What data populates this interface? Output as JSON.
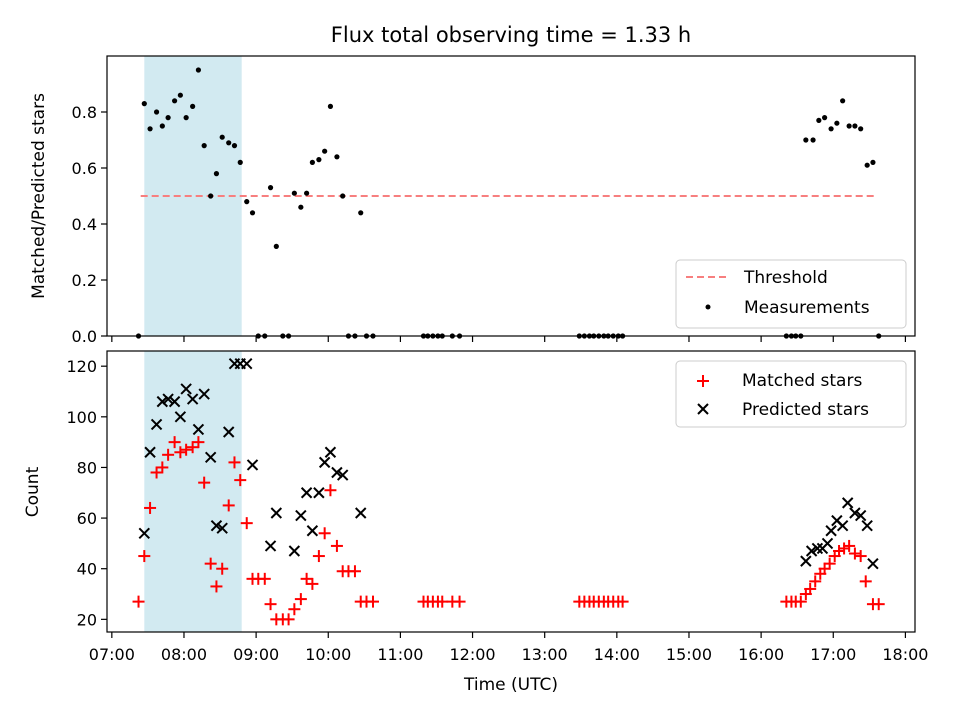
{
  "title": "Flux total observing time = 1.33 h",
  "colors": {
    "threshold": "#f77f7f",
    "band": "#add8e6",
    "matched": "#ff0000",
    "predicted": "#000000"
  },
  "chart_data": [
    {
      "type": "scatter",
      "ylabel": "Matched/Predicted stars",
      "xlim": [
        6.933,
        18.133
      ],
      "ylim": [
        0,
        1.0
      ],
      "yticks": [
        0,
        0.2,
        0.4,
        0.6,
        0.8
      ],
      "ytick_labels": [
        "0.0",
        "0.2",
        "0.4",
        "0.6",
        "0.8"
      ],
      "shaded_band": [
        7.45,
        8.8
      ],
      "threshold": {
        "label": "Threshold",
        "value": 0.5,
        "x_range": [
          7.4,
          17.6
        ]
      },
      "legend_labels": [
        "Threshold",
        "Measurements"
      ],
      "legend_position": "lower-right",
      "points": [
        [
          7.37,
          0
        ],
        [
          7.45,
          0.83
        ],
        [
          7.53,
          0.74
        ],
        [
          7.62,
          0.8
        ],
        [
          7.7,
          0.75
        ],
        [
          7.78,
          0.78
        ],
        [
          7.87,
          0.84
        ],
        [
          7.95,
          0.86
        ],
        [
          8.03,
          0.78
        ],
        [
          8.12,
          0.82
        ],
        [
          8.2,
          0.95
        ],
        [
          8.28,
          0.68
        ],
        [
          8.37,
          0.5
        ],
        [
          8.45,
          0.58
        ],
        [
          8.53,
          0.71
        ],
        [
          8.62,
          0.69
        ],
        [
          8.7,
          0.68
        ],
        [
          8.78,
          0.62
        ],
        [
          8.87,
          0.48
        ],
        [
          8.95,
          0.44
        ],
        [
          9.03,
          0
        ],
        [
          9.12,
          0
        ],
        [
          9.2,
          0.53
        ],
        [
          9.28,
          0.32
        ],
        [
          9.37,
          0
        ],
        [
          9.45,
          0
        ],
        [
          9.53,
          0.51
        ],
        [
          9.62,
          0.46
        ],
        [
          9.7,
          0.51
        ],
        [
          9.78,
          0.62
        ],
        [
          9.87,
          0.63
        ],
        [
          9.95,
          0.66
        ],
        [
          10.03,
          0.82
        ],
        [
          10.12,
          0.64
        ],
        [
          10.2,
          0.5
        ],
        [
          10.28,
          0
        ],
        [
          10.37,
          0
        ],
        [
          10.45,
          0.44
        ],
        [
          10.53,
          0
        ],
        [
          10.62,
          0
        ],
        [
          11.32,
          0
        ],
        [
          11.38,
          0
        ],
        [
          11.45,
          0
        ],
        [
          11.52,
          0
        ],
        [
          11.58,
          0
        ],
        [
          11.72,
          0
        ],
        [
          11.82,
          0
        ],
        [
          13.48,
          0
        ],
        [
          13.55,
          0
        ],
        [
          13.62,
          0
        ],
        [
          13.68,
          0
        ],
        [
          13.75,
          0
        ],
        [
          13.82,
          0
        ],
        [
          13.88,
          0
        ],
        [
          13.95,
          0
        ],
        [
          14.02,
          0
        ],
        [
          14.08,
          0
        ],
        [
          16.35,
          0
        ],
        [
          16.42,
          0
        ],
        [
          16.48,
          0
        ],
        [
          16.55,
          0
        ],
        [
          16.62,
          0.7
        ],
        [
          16.72,
          0.7
        ],
        [
          16.8,
          0.77
        ],
        [
          16.88,
          0.78
        ],
        [
          16.97,
          0.74
        ],
        [
          17.05,
          0.76
        ],
        [
          17.13,
          0.84
        ],
        [
          17.22,
          0.75
        ],
        [
          17.3,
          0.75
        ],
        [
          17.38,
          0.74
        ],
        [
          17.47,
          0.61
        ],
        [
          17.55,
          0.62
        ],
        [
          17.63,
          0
        ]
      ]
    },
    {
      "type": "scatter",
      "ylabel": "Count",
      "xlabel": "Time (UTC)",
      "xlim": [
        6.933,
        18.133
      ],
      "ylim": [
        15,
        126
      ],
      "yticks": [
        20,
        40,
        60,
        80,
        100,
        120
      ],
      "ytick_labels": [
        "20",
        "40",
        "60",
        "80",
        "100",
        "120"
      ],
      "xticks": [
        7,
        8,
        9,
        10,
        11,
        12,
        13,
        14,
        15,
        16,
        17,
        18
      ],
      "xtick_labels": [
        "07:00",
        "08:00",
        "09:00",
        "10:00",
        "11:00",
        "12:00",
        "13:00",
        "14:00",
        "15:00",
        "16:00",
        "17:00",
        "18:00"
      ],
      "shaded_band": [
        7.45,
        8.8
      ],
      "legend_labels": [
        "Matched stars",
        "Predicted stars"
      ],
      "legend_position": "top-right",
      "series": [
        {
          "name": "Matched stars",
          "marker": "+",
          "points": [
            [
              7.37,
              27
            ],
            [
              7.45,
              45
            ],
            [
              7.53,
              64
            ],
            [
              7.62,
              78
            ],
            [
              7.7,
              80
            ],
            [
              7.78,
              85
            ],
            [
              7.87,
              90
            ],
            [
              7.95,
              86
            ],
            [
              8.03,
              87
            ],
            [
              8.12,
              88
            ],
            [
              8.2,
              90
            ],
            [
              8.28,
              74
            ],
            [
              8.37,
              42
            ],
            [
              8.45,
              33
            ],
            [
              8.53,
              40
            ],
            [
              8.62,
              65
            ],
            [
              8.7,
              82
            ],
            [
              8.78,
              75
            ],
            [
              8.87,
              58
            ],
            [
              8.95,
              36
            ],
            [
              9.03,
              36
            ],
            [
              9.12,
              36
            ],
            [
              9.2,
              26
            ],
            [
              9.28,
              20
            ],
            [
              9.37,
              20
            ],
            [
              9.45,
              20
            ],
            [
              9.53,
              24
            ],
            [
              9.62,
              28
            ],
            [
              9.7,
              36
            ],
            [
              9.78,
              34
            ],
            [
              9.87,
              45
            ],
            [
              9.95,
              54
            ],
            [
              10.03,
              71
            ],
            [
              10.12,
              49
            ],
            [
              10.2,
              39
            ],
            [
              10.28,
              39
            ],
            [
              10.37,
              39
            ],
            [
              10.45,
              27
            ],
            [
              10.53,
              27
            ],
            [
              10.62,
              27
            ],
            [
              11.32,
              27
            ],
            [
              11.38,
              27
            ],
            [
              11.45,
              27
            ],
            [
              11.52,
              27
            ],
            [
              11.58,
              27
            ],
            [
              11.72,
              27
            ],
            [
              11.82,
              27
            ],
            [
              13.48,
              27
            ],
            [
              13.55,
              27
            ],
            [
              13.62,
              27
            ],
            [
              13.68,
              27
            ],
            [
              13.75,
              27
            ],
            [
              13.82,
              27
            ],
            [
              13.88,
              27
            ],
            [
              13.95,
              27
            ],
            [
              14.02,
              27
            ],
            [
              14.08,
              27
            ],
            [
              16.35,
              27
            ],
            [
              16.42,
              27
            ],
            [
              16.48,
              27
            ],
            [
              16.55,
              27
            ],
            [
              16.62,
              30
            ],
            [
              16.68,
              32
            ],
            [
              16.75,
              35
            ],
            [
              16.82,
              38
            ],
            [
              16.88,
              40
            ],
            [
              16.95,
              42
            ],
            [
              17.02,
              45
            ],
            [
              17.08,
              47
            ],
            [
              17.15,
              48
            ],
            [
              17.22,
              49
            ],
            [
              17.3,
              46
            ],
            [
              17.38,
              45
            ],
            [
              17.45,
              35
            ],
            [
              17.55,
              26
            ],
            [
              17.63,
              26
            ]
          ]
        },
        {
          "name": "Predicted stars",
          "marker": "x",
          "points": [
            [
              7.45,
              54
            ],
            [
              7.53,
              86
            ],
            [
              7.62,
              97
            ],
            [
              7.7,
              106
            ],
            [
              7.78,
              107
            ],
            [
              7.87,
              106
            ],
            [
              7.95,
              100
            ],
            [
              8.03,
              111
            ],
            [
              8.12,
              107
            ],
            [
              8.2,
              95
            ],
            [
              8.28,
              109
            ],
            [
              8.37,
              84
            ],
            [
              8.45,
              57
            ],
            [
              8.53,
              56
            ],
            [
              8.62,
              94
            ],
            [
              8.7,
              121
            ],
            [
              8.78,
              121
            ],
            [
              8.87,
              121
            ],
            [
              8.95,
              81
            ],
            [
              9.2,
              49
            ],
            [
              9.28,
              62
            ],
            [
              9.53,
              47
            ],
            [
              9.62,
              61
            ],
            [
              9.7,
              70
            ],
            [
              9.78,
              55
            ],
            [
              9.87,
              70
            ],
            [
              9.95,
              82
            ],
            [
              10.03,
              86
            ],
            [
              10.12,
              78
            ],
            [
              10.2,
              77
            ],
            [
              10.45,
              62
            ],
            [
              16.62,
              43
            ],
            [
              16.7,
              47
            ],
            [
              16.78,
              48
            ],
            [
              16.85,
              48
            ],
            [
              16.92,
              50
            ],
            [
              16.97,
              55
            ],
            [
              17.05,
              59
            ],
            [
              17.13,
              57
            ],
            [
              17.2,
              66
            ],
            [
              17.3,
              62
            ],
            [
              17.38,
              61
            ],
            [
              17.47,
              57
            ],
            [
              17.55,
              42
            ]
          ]
        }
      ]
    }
  ]
}
